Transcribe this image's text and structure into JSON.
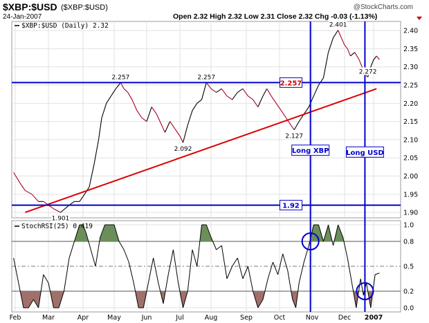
{
  "header": {
    "symbol": "$XBP:$USD",
    "symbol_paren": "($XBP:$USD)",
    "date": "24-Jan-2007",
    "quote": "Open 2.32  High 2.32  Low 2.31  Close 2.32  Chg -0.03 (-1.13%)",
    "watermark": "@StockCharts.com",
    "chg_color": "#cc0000"
  },
  "chart_data": [
    {
      "type": "line",
      "legend": "$XBP:$USD (Daily) 2.32",
      "x_tick_labels": [
        "Feb",
        "Mar",
        "Apr",
        "May",
        "Jun",
        "Jul",
        "Aug",
        "Sep",
        "Oct",
        "Nov",
        "Dec",
        "2007"
      ],
      "y_ticks": [
        1.9,
        1.95,
        2.0,
        2.05,
        2.1,
        2.15,
        2.2,
        2.25,
        2.3,
        2.35,
        2.4
      ],
      "ylim": [
        1.885,
        2.425
      ],
      "x_months": [
        0,
        1,
        2,
        3,
        4,
        5,
        6,
        7,
        8,
        9,
        10,
        11
      ],
      "series": [
        {
          "x": [
            -0.05,
            0.15,
            0.3,
            0.5,
            0.7,
            0.85,
            1.0,
            1.15,
            1.35,
            1.6,
            1.75,
            1.9,
            2.05,
            2.2,
            2.35,
            2.5,
            2.6,
            2.75,
            2.9,
            3.05,
            3.2,
            3.3,
            3.42,
            3.55,
            3.7,
            3.85,
            4.0,
            4.15,
            4.3,
            4.45,
            4.55,
            4.7,
            4.85,
            5.0,
            5.1,
            5.25,
            5.4,
            5.55,
            5.7,
            5.85,
            6.0,
            6.15,
            6.3,
            6.45,
            6.6,
            6.75,
            6.9,
            7.05,
            7.2,
            7.35,
            7.5,
            7.62,
            7.75,
            7.9,
            8.05,
            8.2,
            8.35,
            8.45,
            8.6,
            8.75,
            8.9,
            9.0,
            9.1,
            9.2,
            9.35,
            9.5,
            9.65,
            9.8,
            9.9,
            10.0,
            10.1,
            10.2,
            10.35,
            10.5,
            10.6,
            10.7,
            10.8,
            10.9,
            11.0,
            11.1,
            11.2
          ],
          "values": [
            2.01,
            1.98,
            1.96,
            1.95,
            1.93,
            1.93,
            1.92,
            1.91,
            1.9,
            1.92,
            1.93,
            1.93,
            1.95,
            1.97,
            2.03,
            2.1,
            2.16,
            2.2,
            2.22,
            2.24,
            2.257,
            2.24,
            2.23,
            2.21,
            2.18,
            2.16,
            2.15,
            2.19,
            2.17,
            2.14,
            2.12,
            2.15,
            2.13,
            2.11,
            2.092,
            2.14,
            2.18,
            2.2,
            2.21,
            2.257,
            2.24,
            2.23,
            2.24,
            2.22,
            2.21,
            2.23,
            2.24,
            2.22,
            2.21,
            2.19,
            2.22,
            2.24,
            2.22,
            2.2,
            2.18,
            2.16,
            2.14,
            2.127,
            2.15,
            2.17,
            2.19,
            2.21,
            2.23,
            2.25,
            2.27,
            2.34,
            2.38,
            2.401,
            2.38,
            2.36,
            2.35,
            2.33,
            2.34,
            2.32,
            2.3,
            2.28,
            2.272,
            2.3,
            2.32,
            2.33,
            2.32
          ]
        }
      ],
      "annotations": [
        {
          "text": "2.257",
          "x": 3.2,
          "y": 2.257
        },
        {
          "text": "2.257",
          "x": 5.85,
          "y": 2.257
        },
        {
          "text": "2.092",
          "x": 5.1,
          "y": 2.092
        },
        {
          "text": "2.127",
          "x": 8.45,
          "y": 2.127
        },
        {
          "text": "2.401",
          "x": 9.8,
          "y": 2.401
        },
        {
          "text": "2.272",
          "x": 10.8,
          "y": 2.272
        },
        {
          "text": "1.901",
          "x": 1.35,
          "y": 1.901
        }
      ],
      "hlines": [
        {
          "y": 2.257,
          "label": "2.257",
          "color": "#0000cc",
          "label_color": "#cc0000"
        },
        {
          "y": 1.92,
          "label": "1.92",
          "color": "#0000cc",
          "label_color": "#0000cc"
        }
      ],
      "trendline": {
        "x": [
          0.3,
          11.1
        ],
        "y": [
          1.9,
          2.24
        ],
        "color": "#dd0000"
      },
      "vlines": [
        {
          "x": 8.95,
          "label": "Long XBP",
          "color": "#0000cc"
        },
        {
          "x": 10.7,
          "label": "Long USD",
          "color": "#0000cc"
        }
      ],
      "colors": {
        "up": "#000000",
        "down": "#aa0022"
      }
    },
    {
      "type": "line",
      "legend": "StochRSI(25) 0.419",
      "y_ticks": [
        0.0,
        0.2,
        0.5,
        0.8,
        1.0
      ],
      "y_tick_labels": [
        "0.0",
        "0.2",
        "0.5",
        "0.8",
        "1.0"
      ],
      "ylim": [
        -0.05,
        1.05
      ],
      "overbought": 0.8,
      "oversold": 0.2,
      "midline": 0.5,
      "series": [
        {
          "x": [
            -0.05,
            0.1,
            0.25,
            0.4,
            0.55,
            0.7,
            0.85,
            1.0,
            1.15,
            1.3,
            1.45,
            1.6,
            1.75,
            1.9,
            2.0,
            2.1,
            2.25,
            2.4,
            2.55,
            2.7,
            2.85,
            3.0,
            3.15,
            3.3,
            3.45,
            3.6,
            3.75,
            3.9,
            4.05,
            4.2,
            4.35,
            4.5,
            4.65,
            4.8,
            4.95,
            5.1,
            5.25,
            5.4,
            5.55,
            5.7,
            5.85,
            6.0,
            6.15,
            6.3,
            6.45,
            6.6,
            6.75,
            6.9,
            7.05,
            7.2,
            7.35,
            7.5,
            7.65,
            7.8,
            7.95,
            8.1,
            8.25,
            8.4,
            8.5,
            8.6,
            8.75,
            8.9,
            9.05,
            9.2,
            9.35,
            9.5,
            9.65,
            9.8,
            9.95,
            10.1,
            10.25,
            10.4,
            10.55,
            10.65,
            10.75,
            10.9,
            11.05,
            11.2
          ],
          "values": [
            0.6,
            0.3,
            0.0,
            0.0,
            0.1,
            0.0,
            0.4,
            0.3,
            0.0,
            0.0,
            0.2,
            0.6,
            0.8,
            1.0,
            1.0,
            0.9,
            0.7,
            0.5,
            0.85,
            1.0,
            1.0,
            1.0,
            0.8,
            0.7,
            0.55,
            0.3,
            0.0,
            0.0,
            0.3,
            0.6,
            0.3,
            0.05,
            0.4,
            0.7,
            0.3,
            0.0,
            0.2,
            0.7,
            0.5,
            1.0,
            1.0,
            0.85,
            0.7,
            0.75,
            0.35,
            0.5,
            0.6,
            0.35,
            0.5,
            0.2,
            0.0,
            0.1,
            0.35,
            0.55,
            0.4,
            0.65,
            0.45,
            0.1,
            0.0,
            0.3,
            0.55,
            0.75,
            1.0,
            1.0,
            0.8,
            1.0,
            0.75,
            1.0,
            0.85,
            0.6,
            0.3,
            0.0,
            0.35,
            0.15,
            0.3,
            0.0,
            0.4,
            0.419
          ]
        }
      ],
      "circles": [
        {
          "x": 8.95,
          "y": 0.8,
          "color": "#0000cc"
        },
        {
          "x": 10.7,
          "y": 0.2,
          "color": "#0000cc"
        }
      ],
      "colors": {
        "overbought_fill": "#6b8e5a",
        "oversold_fill": "#a0706a",
        "line": "#000000"
      }
    }
  ]
}
